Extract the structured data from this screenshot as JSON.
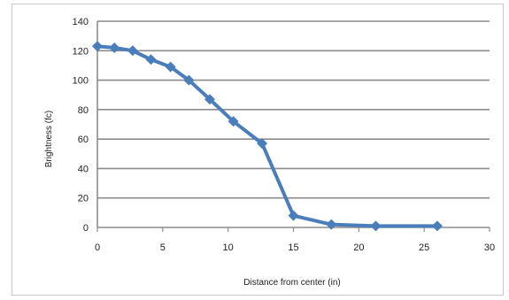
{
  "chart_data": {
    "type": "line",
    "title": "",
    "xlabel": "Distance from center (in)",
    "ylabel": "Brightness (fc)",
    "xlim": [
      0,
      30
    ],
    "ylim": [
      0,
      140
    ],
    "x_ticks": [
      "0",
      "5",
      "10",
      "15",
      "20",
      "25",
      "30"
    ],
    "y_ticks": [
      "0",
      "20",
      "40",
      "60",
      "80",
      "100",
      "120",
      "140"
    ],
    "grid": "horizontal",
    "legend": "none",
    "series": [
      {
        "color": "#4a7ebb",
        "marker": "diamond",
        "x": [
          0,
          1.3,
          2.7,
          4.1,
          5.6,
          7.0,
          8.6,
          10.4,
          12.6,
          15.0,
          17.9,
          21.3,
          26.0
        ],
        "y": [
          123,
          122,
          120,
          114,
          109,
          100,
          87,
          72,
          57,
          8,
          2,
          1,
          1
        ]
      }
    ]
  }
}
